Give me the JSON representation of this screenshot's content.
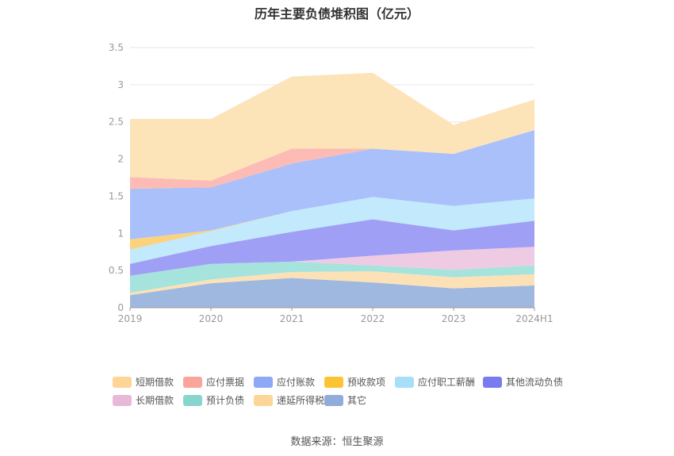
{
  "chart_data": {
    "type": "area",
    "stacked": true,
    "title": "历年主要负债堆积图（亿元）",
    "source": "数据来源：恒生聚源",
    "categories": [
      "2019",
      "2020",
      "2021",
      "2022",
      "2023",
      "2024H1"
    ],
    "ylim": [
      0,
      3.5
    ],
    "yticks": [
      "0",
      "0.5",
      "1",
      "1.5",
      "2",
      "2.5",
      "3",
      "3.5"
    ],
    "grid": true,
    "legend_position": "bottom",
    "series": [
      {
        "name": "其它",
        "color": "#9fb8df",
        "values": [
          0.17,
          0.33,
          0.4,
          0.34,
          0.26,
          0.3
        ]
      },
      {
        "name": "递延所得税负债",
        "color": "#fde1b6",
        "values": [
          0.03,
          0.05,
          0.08,
          0.15,
          0.15,
          0.15
        ]
      },
      {
        "name": "预计负债",
        "color": "#a6e3dd",
        "values": [
          0.23,
          0.21,
          0.14,
          0.08,
          0.1,
          0.12
        ]
      },
      {
        "name": "长期借款",
        "color": "#eecbe3",
        "values": [
          0.0,
          0.0,
          0.0,
          0.13,
          0.26,
          0.25
        ]
      },
      {
        "name": "其他流动负债",
        "color": "#a09ff6",
        "values": [
          0.16,
          0.24,
          0.4,
          0.49,
          0.27,
          0.35
        ]
      },
      {
        "name": "应付职工薪酬",
        "color": "#c2e9fc",
        "values": [
          0.19,
          0.2,
          0.28,
          0.3,
          0.33,
          0.3
        ]
      },
      {
        "name": "预收款项",
        "color": "#fdd27e",
        "values": [
          0.14,
          0.01,
          0.0,
          0.0,
          0.0,
          0.0
        ]
      },
      {
        "name": "应付账款",
        "color": "#a9c0fb",
        "values": [
          0.68,
          0.58,
          0.64,
          0.65,
          0.7,
          0.92
        ]
      },
      {
        "name": "应付票据",
        "color": "#fcbcb5",
        "values": [
          0.16,
          0.09,
          0.2,
          0.0,
          0.0,
          0.0
        ]
      },
      {
        "name": "短期借款",
        "color": "#fde3b8",
        "values": [
          0.78,
          0.83,
          0.97,
          1.02,
          0.39,
          0.41
        ]
      }
    ],
    "legend": [
      {
        "name": "短期借款",
        "color": "#fdd597"
      },
      {
        "name": "应付票据",
        "color": "#f9a59b"
      },
      {
        "name": "应付账款",
        "color": "#8ea8f8"
      },
      {
        "name": "预收款项",
        "color": "#fcc335"
      },
      {
        "name": "应付职工薪酬",
        "color": "#a7dff9"
      },
      {
        "name": "其他流动负债",
        "color": "#7b7bf0"
      },
      {
        "name": "长期借款",
        "color": "#e8b9d7"
      },
      {
        "name": "预计负债",
        "color": "#88d5cf"
      },
      {
        "name": "递延所得税负债",
        "color": "#fdd597"
      },
      {
        "name": "其它",
        "color": "#90acdb"
      }
    ]
  }
}
